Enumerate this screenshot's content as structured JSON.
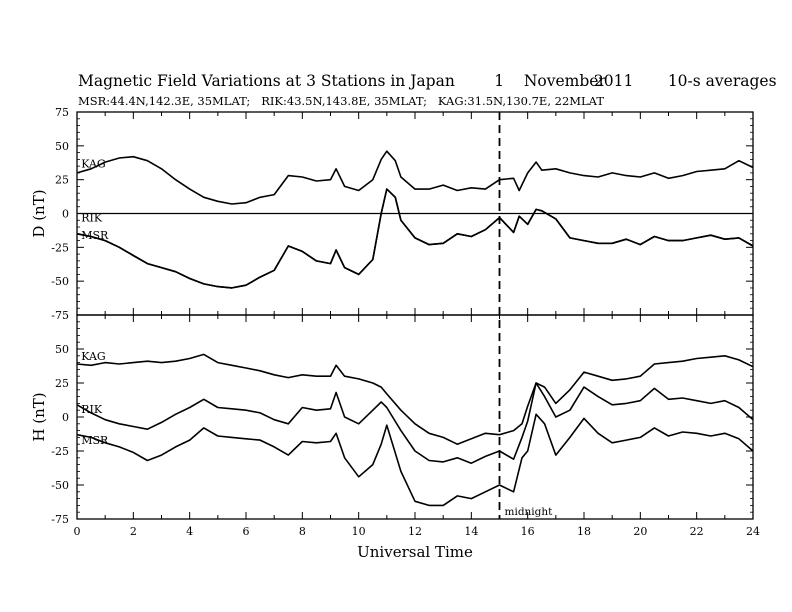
{
  "title": {
    "main": "Magnetic Field Variations at 3 Stations in Japan",
    "day": "1",
    "month": "November",
    "year": "2011",
    "averaging": "10-s averages",
    "stations": "MSR:44.4N,142.3E, 35MLAT;   RIK:43.5N,143.8E, 35MLAT;   KAG:31.5N,130.7E, 22MLAT"
  },
  "chart_data": [
    {
      "type": "line",
      "panel": "top",
      "ylabel": "D (nT)",
      "ylim": [
        -75,
        75
      ],
      "yticks": [
        -75,
        -50,
        -25,
        0,
        25,
        50,
        75
      ],
      "xlim": [
        0,
        24
      ],
      "zero_line": true,
      "series": [
        {
          "name": "KAG",
          "x": [
            0,
            0.5,
            1,
            1.5,
            2,
            2.5,
            3,
            3.5,
            4,
            4.5,
            5,
            5.5,
            6,
            6.5,
            7,
            7.5,
            8,
            8.5,
            9,
            9.2,
            9.5,
            10,
            10.5,
            10.8,
            11,
            11.3,
            11.5,
            12,
            12.5,
            13,
            13.5,
            14,
            14.5,
            15,
            15.5,
            15.7,
            16,
            16.3,
            16.5,
            17,
            17.5,
            18,
            18.5,
            19,
            19.5,
            20,
            20.5,
            21,
            21.5,
            22,
            22.5,
            23,
            23.5,
            24
          ],
          "y": [
            30,
            33,
            38,
            41,
            42,
            39,
            33,
            25,
            18,
            12,
            9,
            7,
            8,
            12,
            14,
            28,
            27,
            24,
            25,
            33,
            20,
            17,
            25,
            40,
            46,
            39,
            27,
            18,
            18,
            21,
            17,
            19,
            18,
            25,
            26,
            17,
            30,
            38,
            32,
            33,
            30,
            28,
            27,
            30,
            28,
            27,
            30,
            26,
            28,
            31,
            32,
            33,
            39,
            34
          ]
        },
        {
          "name": "RIK",
          "x": [
            0,
            0.5,
            1,
            1.5,
            2,
            2.5,
            3,
            3.5,
            4,
            4.5,
            5,
            5.5,
            6,
            6.5,
            7,
            7.5,
            8,
            8.5,
            9,
            9.2,
            9.5,
            10,
            10.5,
            10.8,
            11,
            11.3,
            11.5,
            12,
            12.5,
            13,
            13.5,
            14,
            14.5,
            15,
            15.5,
            15.7,
            16,
            16.3,
            16.5,
            17,
            17.5,
            18,
            18.5,
            19,
            19.5,
            20,
            20.5,
            21,
            21.5,
            22,
            22.5,
            23,
            23.5,
            24
          ],
          "y": [
            -15,
            -17,
            -20,
            -25,
            -31,
            -37,
            -40,
            -43,
            -48,
            -52,
            -54,
            -55,
            -53,
            -47,
            -42,
            -24,
            -28,
            -35,
            -37,
            -27,
            -40,
            -45,
            -34,
            0,
            18,
            12,
            -5,
            -18,
            -23,
            -22,
            -15,
            -17,
            -12,
            -3,
            -14,
            -2,
            -8,
            3,
            2,
            -4,
            -18,
            -20,
            -22,
            -22,
            -19,
            -23,
            -17,
            -20,
            -20,
            -18,
            -16,
            -19,
            -18,
            -24
          ]
        },
        {
          "name": "MSR",
          "x": [
            0,
            0.5,
            1,
            1.5,
            2,
            2.5,
            3,
            3.5,
            4,
            4.5,
            5,
            5.5,
            6,
            6.5,
            7,
            7.5,
            8,
            8.5,
            9,
            9.2,
            9.5,
            10,
            10.5,
            10.8,
            11,
            11.3,
            11.5,
            12,
            12.5,
            13,
            13.5,
            14,
            14.5,
            15,
            15.5,
            15.7,
            16,
            16.3,
            16.5,
            17,
            17.5,
            18,
            18.5,
            19,
            19.5,
            20,
            20.5,
            21,
            21.5,
            22,
            22.5,
            23,
            23.5,
            24
          ],
          "y": [
            -15,
            -17,
            -20,
            -25,
            -31,
            -37,
            -40,
            -43,
            -48,
            -52,
            -54,
            -55,
            -53,
            -47,
            -42,
            -24,
            -28,
            -35,
            -37,
            -27,
            -40,
            -45,
            -34,
            0,
            18,
            12,
            -5,
            -18,
            -23,
            -22,
            -15,
            -17,
            -12,
            -3,
            -14,
            -2,
            -8,
            3,
            2,
            -4,
            -18,
            -20,
            -22,
            -22,
            -19,
            -23,
            -17,
            -20,
            -20,
            -18,
            -16,
            -19,
            -18,
            -24
          ]
        }
      ],
      "station_labels": [
        {
          "text": "KAG",
          "x": 0.15,
          "y": 34
        },
        {
          "text": "RIK",
          "x": 0.15,
          "y": -6
        },
        {
          "text": "MSR",
          "x": 0.15,
          "y": -19
        }
      ]
    },
    {
      "type": "line",
      "panel": "bottom",
      "ylabel": "H (nT)",
      "xlabel": "Universal Time",
      "ylim": [
        -75,
        75
      ],
      "yticks": [
        -75,
        -50,
        -25,
        0,
        25,
        50
      ],
      "xlim": [
        0,
        24
      ],
      "xticks": [
        0,
        2,
        4,
        6,
        8,
        10,
        12,
        14,
        16,
        18,
        20,
        22,
        24
      ],
      "series": [
        {
          "name": "KAG",
          "x": [
            0,
            0.5,
            1,
            1.5,
            2,
            2.5,
            3,
            3.5,
            4,
            4.5,
            5,
            5.5,
            6,
            6.5,
            7,
            7.5,
            8,
            8.5,
            9,
            9.2,
            9.5,
            10,
            10.5,
            10.8,
            11,
            11.5,
            12,
            12.5,
            13,
            13.5,
            14,
            14.5,
            15,
            15.5,
            15.8,
            16,
            16.3,
            16.6,
            17,
            17.5,
            18,
            18.5,
            19,
            19.5,
            20,
            20.5,
            21,
            21.5,
            22,
            22.5,
            23,
            23.5,
            24
          ],
          "y": [
            39,
            38,
            40,
            39,
            40,
            41,
            40,
            41,
            43,
            46,
            40,
            38,
            36,
            34,
            31,
            29,
            31,
            30,
            30,
            38,
            30,
            28,
            25,
            22,
            17,
            5,
            -5,
            -12,
            -15,
            -20,
            -16,
            -12,
            -13,
            -10,
            -5,
            8,
            25,
            22,
            10,
            20,
            33,
            30,
            27,
            28,
            30,
            39,
            40,
            41,
            43,
            44,
            45,
            42,
            37
          ]
        },
        {
          "name": "RIK",
          "x": [
            0,
            0.5,
            1,
            1.5,
            2,
            2.5,
            3,
            3.5,
            4,
            4.5,
            5,
            5.5,
            6,
            6.5,
            7,
            7.5,
            8,
            8.5,
            9,
            9.2,
            9.5,
            10,
            10.5,
            10.8,
            11,
            11.5,
            12,
            12.5,
            13,
            13.5,
            14,
            14.5,
            15,
            15.5,
            15.8,
            16,
            16.3,
            16.6,
            17,
            17.5,
            18,
            18.5,
            19,
            19.5,
            20,
            20.5,
            21,
            21.5,
            22,
            22.5,
            23,
            23.5,
            24
          ],
          "y": [
            9,
            3,
            -2,
            -5,
            -7,
            -9,
            -4,
            2,
            7,
            13,
            7,
            6,
            5,
            3,
            -2,
            -5,
            7,
            5,
            6,
            18,
            0,
            -5,
            5,
            11,
            7,
            -10,
            -25,
            -32,
            -33,
            -30,
            -34,
            -29,
            -25,
            -31,
            -15,
            -3,
            25,
            15,
            0,
            5,
            22,
            15,
            9,
            10,
            12,
            21,
            13,
            14,
            12,
            10,
            12,
            7,
            -2
          ]
        },
        {
          "name": "MSR",
          "x": [
            0,
            0.5,
            1,
            1.5,
            2,
            2.5,
            3,
            3.5,
            4,
            4.5,
            5,
            5.5,
            6,
            6.5,
            7,
            7.5,
            8,
            8.5,
            9,
            9.2,
            9.5,
            10,
            10.5,
            10.8,
            11,
            11.5,
            12,
            12.5,
            13,
            13.5,
            14,
            14.5,
            15,
            15.5,
            15.8,
            16,
            16.3,
            16.6,
            17,
            17.5,
            18,
            18.5,
            19,
            19.5,
            20,
            20.5,
            21,
            21.5,
            22,
            22.5,
            23,
            23.5,
            24
          ],
          "y": [
            -13,
            -15,
            -19,
            -22,
            -26,
            -32,
            -28,
            -22,
            -17,
            -8,
            -14,
            -15,
            -16,
            -17,
            -22,
            -28,
            -18,
            -19,
            -18,
            -12,
            -30,
            -44,
            -35,
            -20,
            -6,
            -40,
            -62,
            -65,
            -65,
            -58,
            -60,
            -55,
            -50,
            -55,
            -30,
            -25,
            2,
            -5,
            -28,
            -15,
            -1,
            -12,
            -19,
            -17,
            -15,
            -8,
            -14,
            -11,
            -12,
            -14,
            -12,
            -16,
            -25
          ]
        }
      ],
      "station_labels": [
        {
          "text": "KAG",
          "x": 0.15,
          "y": 42
        },
        {
          "text": "RIK",
          "x": 0.15,
          "y": 3
        },
        {
          "text": "MSR",
          "x": 0.15,
          "y": -20
        }
      ]
    }
  ],
  "marker": {
    "x": 15,
    "label": "midnight"
  }
}
